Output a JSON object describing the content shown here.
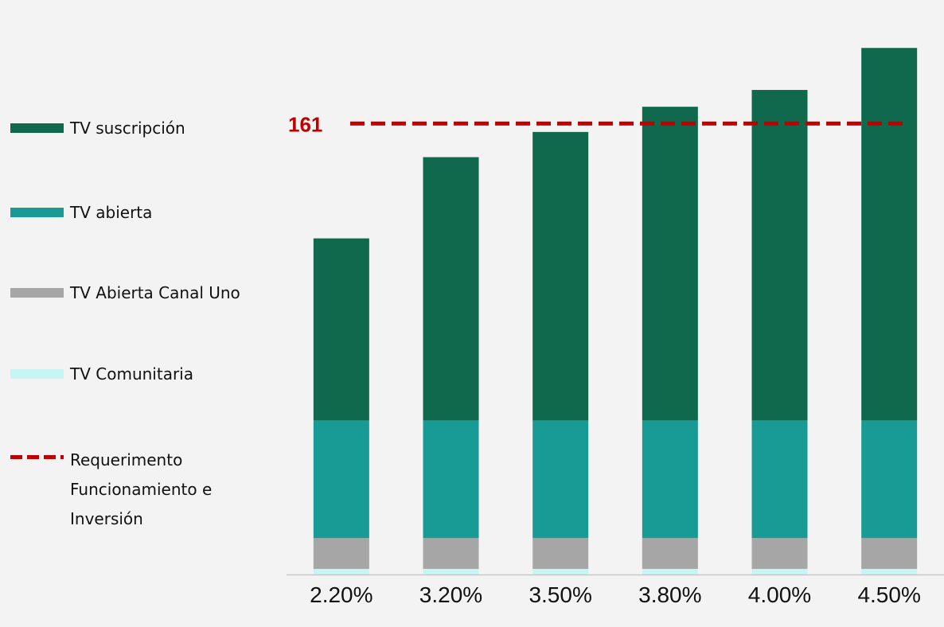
{
  "chart_data": {
    "type": "stacked_bar",
    "categories": [
      "2.20%",
      "3.20%",
      "3.50%",
      "3.80%",
      "4.00%",
      "4.50%"
    ],
    "series": [
      {
        "name": "TV suscripción",
        "color": "#10684d",
        "values": [
          65,
          94,
          103,
          112,
          118,
          133
        ]
      },
      {
        "name": "TV abierta",
        "color": "#189b94",
        "values": [
          42,
          42,
          42,
          42,
          42,
          42
        ]
      },
      {
        "name": "TV Abierta Canal Uno",
        "color": "#a6a6a6",
        "values": [
          11,
          11,
          11,
          11,
          11,
          11
        ]
      },
      {
        "name": "TV Comunitaria",
        "color": "#c6f6f4",
        "values": [
          2,
          2,
          2,
          2,
          2,
          2
        ]
      }
    ],
    "reference_line": {
      "name": "Requerimento Funcionamiento e Inversión",
      "value": 161,
      "color": "#c00000"
    },
    "ylim": [
      0,
      200
    ],
    "legend": "left"
  }
}
